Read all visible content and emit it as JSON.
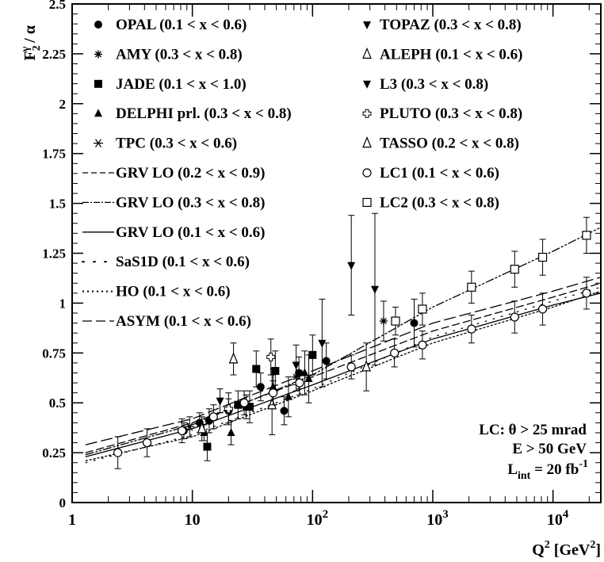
{
  "chart_data": {
    "type": "scatter",
    "x_scale": "log",
    "xlim": [
      1,
      25000
    ],
    "ylim": [
      0,
      2.5
    ],
    "xlabel": {
      "main": "Q",
      "sup": "2",
      "unit_pre": " [GeV",
      "unit_sup": "2",
      "unit_post": "]"
    },
    "ylabel": {
      "main": "F",
      "sub": "2",
      "sup": "γ",
      "post": " / α"
    },
    "y_ticks": [
      "0",
      "0.25",
      "0.5",
      "0.75",
      "1",
      "1.25",
      "1.5",
      "1.75",
      "2",
      "2.25",
      "2.5"
    ],
    "x_ticks": [
      {
        "base": "1",
        "exp": ""
      },
      {
        "base": "10",
        "exp": ""
      },
      {
        "base": "10",
        "exp": "2"
      },
      {
        "base": "10",
        "exp": "3"
      },
      {
        "base": "10",
        "exp": "4"
      }
    ],
    "legend_left": [
      {
        "label": "OPAL (0.1 < x < 0.6)",
        "marker": "filled-circle"
      },
      {
        "label": "AMY (0.3 < x < 0.8)",
        "marker": "small-star"
      },
      {
        "label": "JADE (0.1 < x < 1.0)",
        "marker": "filled-square"
      },
      {
        "label": "DELPHI prl. (0.3 < x < 0.8)",
        "marker": "filled-triangle"
      },
      {
        "label": "TPC (0.3 < x < 0.6)",
        "marker": "asterisk"
      },
      {
        "label": "GRV LO (0.2 < x < 0.9)",
        "marker": "dashed-line"
      },
      {
        "label": "GRV LO (0.3 < x < 0.8)",
        "marker": "dashdot-line"
      },
      {
        "label": "GRV LO (0.1 < x < 0.6)",
        "marker": "solid-line"
      },
      {
        "label": "SaS1D (0.1 < x < 0.6)",
        "marker": "sparse-dotted-line"
      },
      {
        "label": "HO (0.1 < x < 0.6)",
        "marker": "dotted-line"
      },
      {
        "label": "ASYM (0.1 < x < 0.6)",
        "marker": "long-dashed-line"
      }
    ],
    "legend_right": [
      {
        "label": "TOPAZ (0.3 < x < 0.8)",
        "marker": "filled-down-triangle"
      },
      {
        "label": "ALEPH (0.1 < x < 0.6)",
        "marker": "open-triangle"
      },
      {
        "label": "L3 (0.3 < x < 0.8)",
        "marker": "filled-down-triangle"
      },
      {
        "label": "PLUTO (0.3 < x < 0.8)",
        "marker": "open-cross"
      },
      {
        "label": "TASSO (0.2 < x < 0.8)",
        "marker": "open-triangle"
      },
      {
        "label": "LC1 (0.1 < x < 0.6)",
        "marker": "open-circle"
      },
      {
        "label": "LC2 (0.3 < x < 0.8)",
        "marker": "open-square"
      }
    ],
    "annotation": {
      "line1": "LC: θ > 25 mrad",
      "line2": "E > 50 GeV",
      "line3_pre": "L",
      "line3_sub": "int",
      "line3_mid": " = 20 fb",
      "line3_sup": "-1"
    },
    "series": [
      {
        "name": "OPAL (0.1 < x < 0.6)",
        "marker": "filled-circle",
        "points": [
          [
            8.5,
            0.36,
            0.04
          ],
          [
            11.5,
            0.4,
            0.05
          ],
          [
            13.8,
            0.41,
            0.06
          ],
          [
            20,
            0.46,
            0.06
          ],
          [
            28,
            0.48,
            0.06
          ],
          [
            37,
            0.58,
            0.07
          ],
          [
            58,
            0.46,
            0.07
          ],
          [
            77,
            0.65,
            0.08
          ],
          [
            130,
            0.71,
            0.09
          ],
          [
            700,
            0.9,
            0.12
          ]
        ]
      },
      {
        "name": "AMY (0.3 < x < 0.8)",
        "marker": "small-star",
        "points": [
          [
            73,
            0.63,
            0.07
          ],
          [
            390,
            0.91,
            0.1
          ]
        ]
      },
      {
        "name": "JADE (0.1 < x < 1.0)",
        "marker": "filled-square",
        "points": [
          [
            13.3,
            0.28,
            0.07
          ],
          [
            24,
            0.49,
            0.07
          ],
          [
            30,
            0.48,
            0.08
          ],
          [
            34,
            0.67,
            0.09
          ],
          [
            49,
            0.66,
            0.1
          ],
          [
            100,
            0.74,
            0.1
          ]
        ]
      },
      {
        "name": "DELPHI prl. (0.3 < x < 0.8)",
        "marker": "filled-triangle",
        "points": [
          [
            12.5,
            0.35,
            0.04
          ],
          [
            21,
            0.35,
            0.06
          ],
          [
            47,
            0.58,
            0.09
          ],
          [
            63,
            0.53,
            0.1
          ],
          [
            86,
            0.65,
            0.11
          ],
          [
            93,
            0.62,
            0.12
          ]
        ]
      },
      {
        "name": "TPC (0.3 < x < 0.6)",
        "marker": "asterisk",
        "points": [
          [
            9.5,
            0.38,
            0.05
          ]
        ]
      },
      {
        "name": "TOPAZ (0.3 < x < 0.8)",
        "marker": "filled-down-triangle",
        "points": [
          [
            17,
            0.51,
            0.06
          ],
          [
            73,
            0.69,
            0.1
          ],
          [
            120,
            0.8,
            0.22
          ]
        ]
      },
      {
        "name": "ALEPH (0.1 < x < 0.6)",
        "marker": "open-triangle",
        "points": [
          [
            22,
            0.72,
            0.08
          ],
          [
            280,
            0.68,
            0.12
          ]
        ]
      },
      {
        "name": "L3 (0.3 < x < 0.8)",
        "marker": "filled-down-triangle",
        "points": [
          [
            210,
            1.19,
            0.25
          ],
          [
            330,
            1.07,
            0.38
          ]
        ]
      },
      {
        "name": "PLUTO (0.3 < x < 0.8)",
        "marker": "open-cross",
        "points": [
          [
            20,
            0.47,
            0.08
          ],
          [
            45,
            0.73,
            0.09
          ]
        ]
      },
      {
        "name": "TASSO (0.2 < x < 0.8)",
        "marker": "open-triangle",
        "points": [
          [
            12,
            0.37,
            0.06
          ],
          [
            46,
            0.49,
            0.15
          ]
        ]
      },
      {
        "name": "LC1 (0.1 < x < 0.6)",
        "marker": "open-circle",
        "points": [
          [
            2.4,
            0.25,
            0.08
          ],
          [
            4.2,
            0.3,
            0.07
          ],
          [
            8.2,
            0.36,
            0.06
          ],
          [
            15,
            0.43,
            0.06
          ],
          [
            27,
            0.5,
            0.06
          ],
          [
            47,
            0.55,
            0.06
          ],
          [
            78,
            0.6,
            0.06
          ],
          [
            210,
            0.68,
            0.06
          ],
          [
            480,
            0.75,
            0.07
          ],
          [
            820,
            0.79,
            0.07
          ],
          [
            2100,
            0.87,
            0.07
          ],
          [
            4800,
            0.93,
            0.08
          ],
          [
            8200,
            0.97,
            0.08
          ],
          [
            19000,
            1.05,
            0.08
          ]
        ]
      },
      {
        "name": "LC2 (0.3 < x < 0.8)",
        "marker": "open-square",
        "points": [
          [
            490,
            0.91,
            0.07
          ],
          [
            820,
            0.97,
            0.08
          ],
          [
            2100,
            1.08,
            0.08
          ],
          [
            4800,
            1.17,
            0.09
          ],
          [
            8200,
            1.23,
            0.09
          ],
          [
            19000,
            1.34,
            0.09
          ]
        ]
      }
    ],
    "curves": [
      {
        "name": "GRV LO (0.2 < x < 0.9)",
        "style": "dashed",
        "points": [
          [
            1.3,
            0.25
          ],
          [
            10,
            0.4
          ],
          [
            100,
            0.63
          ],
          [
            1000,
            0.86
          ],
          [
            10000,
            1.03
          ],
          [
            25000,
            1.1
          ]
        ]
      },
      {
        "name": "GRV LO (0.3 < x < 0.8)",
        "style": "dashdot",
        "points": [
          [
            1.3,
            0.24
          ],
          [
            10,
            0.39
          ],
          [
            100,
            0.64
          ],
          [
            1000,
            0.98
          ],
          [
            10000,
            1.26
          ],
          [
            25000,
            1.38
          ]
        ]
      },
      {
        "name": "GRV LO (0.1 < x < 0.6)",
        "style": "solid",
        "points": [
          [
            1.3,
            0.23
          ],
          [
            10,
            0.37
          ],
          [
            100,
            0.59
          ],
          [
            1000,
            0.82
          ],
          [
            10000,
            0.99
          ],
          [
            25000,
            1.05
          ]
        ]
      },
      {
        "name": "SaS1D (0.1 < x < 0.6)",
        "style": "sparse-dotted",
        "points": [
          [
            1.3,
            0.2
          ],
          [
            10,
            0.34
          ],
          [
            100,
            0.57
          ],
          [
            1000,
            0.83
          ],
          [
            10000,
            1.01
          ],
          [
            25000,
            1.08
          ]
        ]
      },
      {
        "name": "HO (0.1 < x < 0.6)",
        "style": "dotted",
        "points": [
          [
            1.3,
            0.21
          ],
          [
            10,
            0.33
          ],
          [
            100,
            0.56
          ],
          [
            1000,
            0.8
          ],
          [
            10000,
            0.98
          ],
          [
            25000,
            1.06
          ]
        ]
      },
      {
        "name": "ASYM (0.1 < x < 0.6)",
        "style": "long-dashed",
        "points": [
          [
            1.3,
            0.29
          ],
          [
            10,
            0.42
          ],
          [
            100,
            0.66
          ],
          [
            1000,
            0.9
          ],
          [
            10000,
            1.06
          ],
          [
            25000,
            1.13
          ]
        ]
      }
    ]
  }
}
